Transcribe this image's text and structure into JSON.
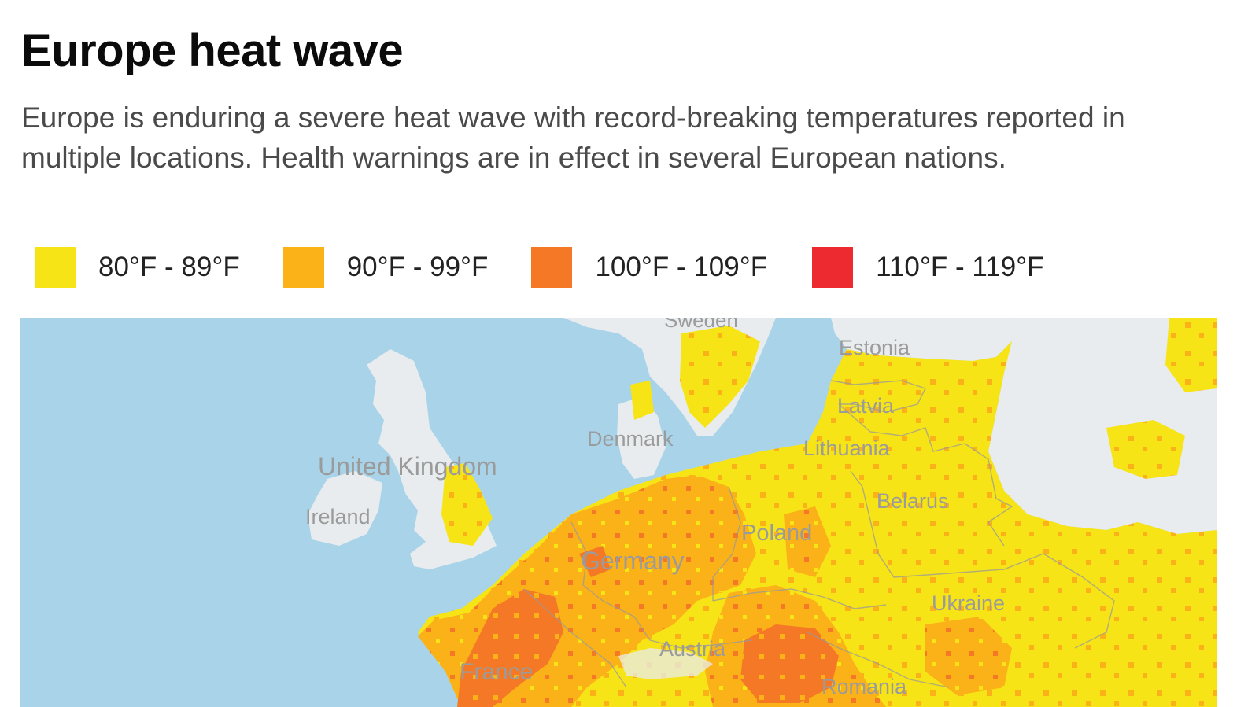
{
  "header": {
    "title": "Europe heat wave",
    "subtitle": "Europe is enduring a severe heat wave with record-breaking temperatures reported in multiple locations. Health warnings are in effect in several European nations."
  },
  "legend": [
    {
      "label": "80°F - 89°F",
      "color": "#f6e416"
    },
    {
      "label": "90°F - 99°F",
      "color": "#fab218"
    },
    {
      "label": "100°F - 109°F",
      "color": "#f47825"
    },
    {
      "label": "110°F - 119°F",
      "color": "#ec2a2f"
    }
  ],
  "map": {
    "colors": {
      "sea": "#a9d3e8",
      "land": "#e8ecee",
      "label": "#9b9b9b"
    },
    "country_labels": {
      "sweden": "Sweden",
      "estonia": "Estonia",
      "latvia": "Latvia",
      "denmark": "Denmark",
      "lithuania": "Lithuania",
      "united_kingdom": "United Kingdom",
      "ireland": "Ireland",
      "belarus": "Belarus",
      "poland": "Poland",
      "germany": "Germany",
      "ukraine": "Ukraine",
      "austria": "Austria",
      "france": "France",
      "romania": "Romania"
    }
  }
}
